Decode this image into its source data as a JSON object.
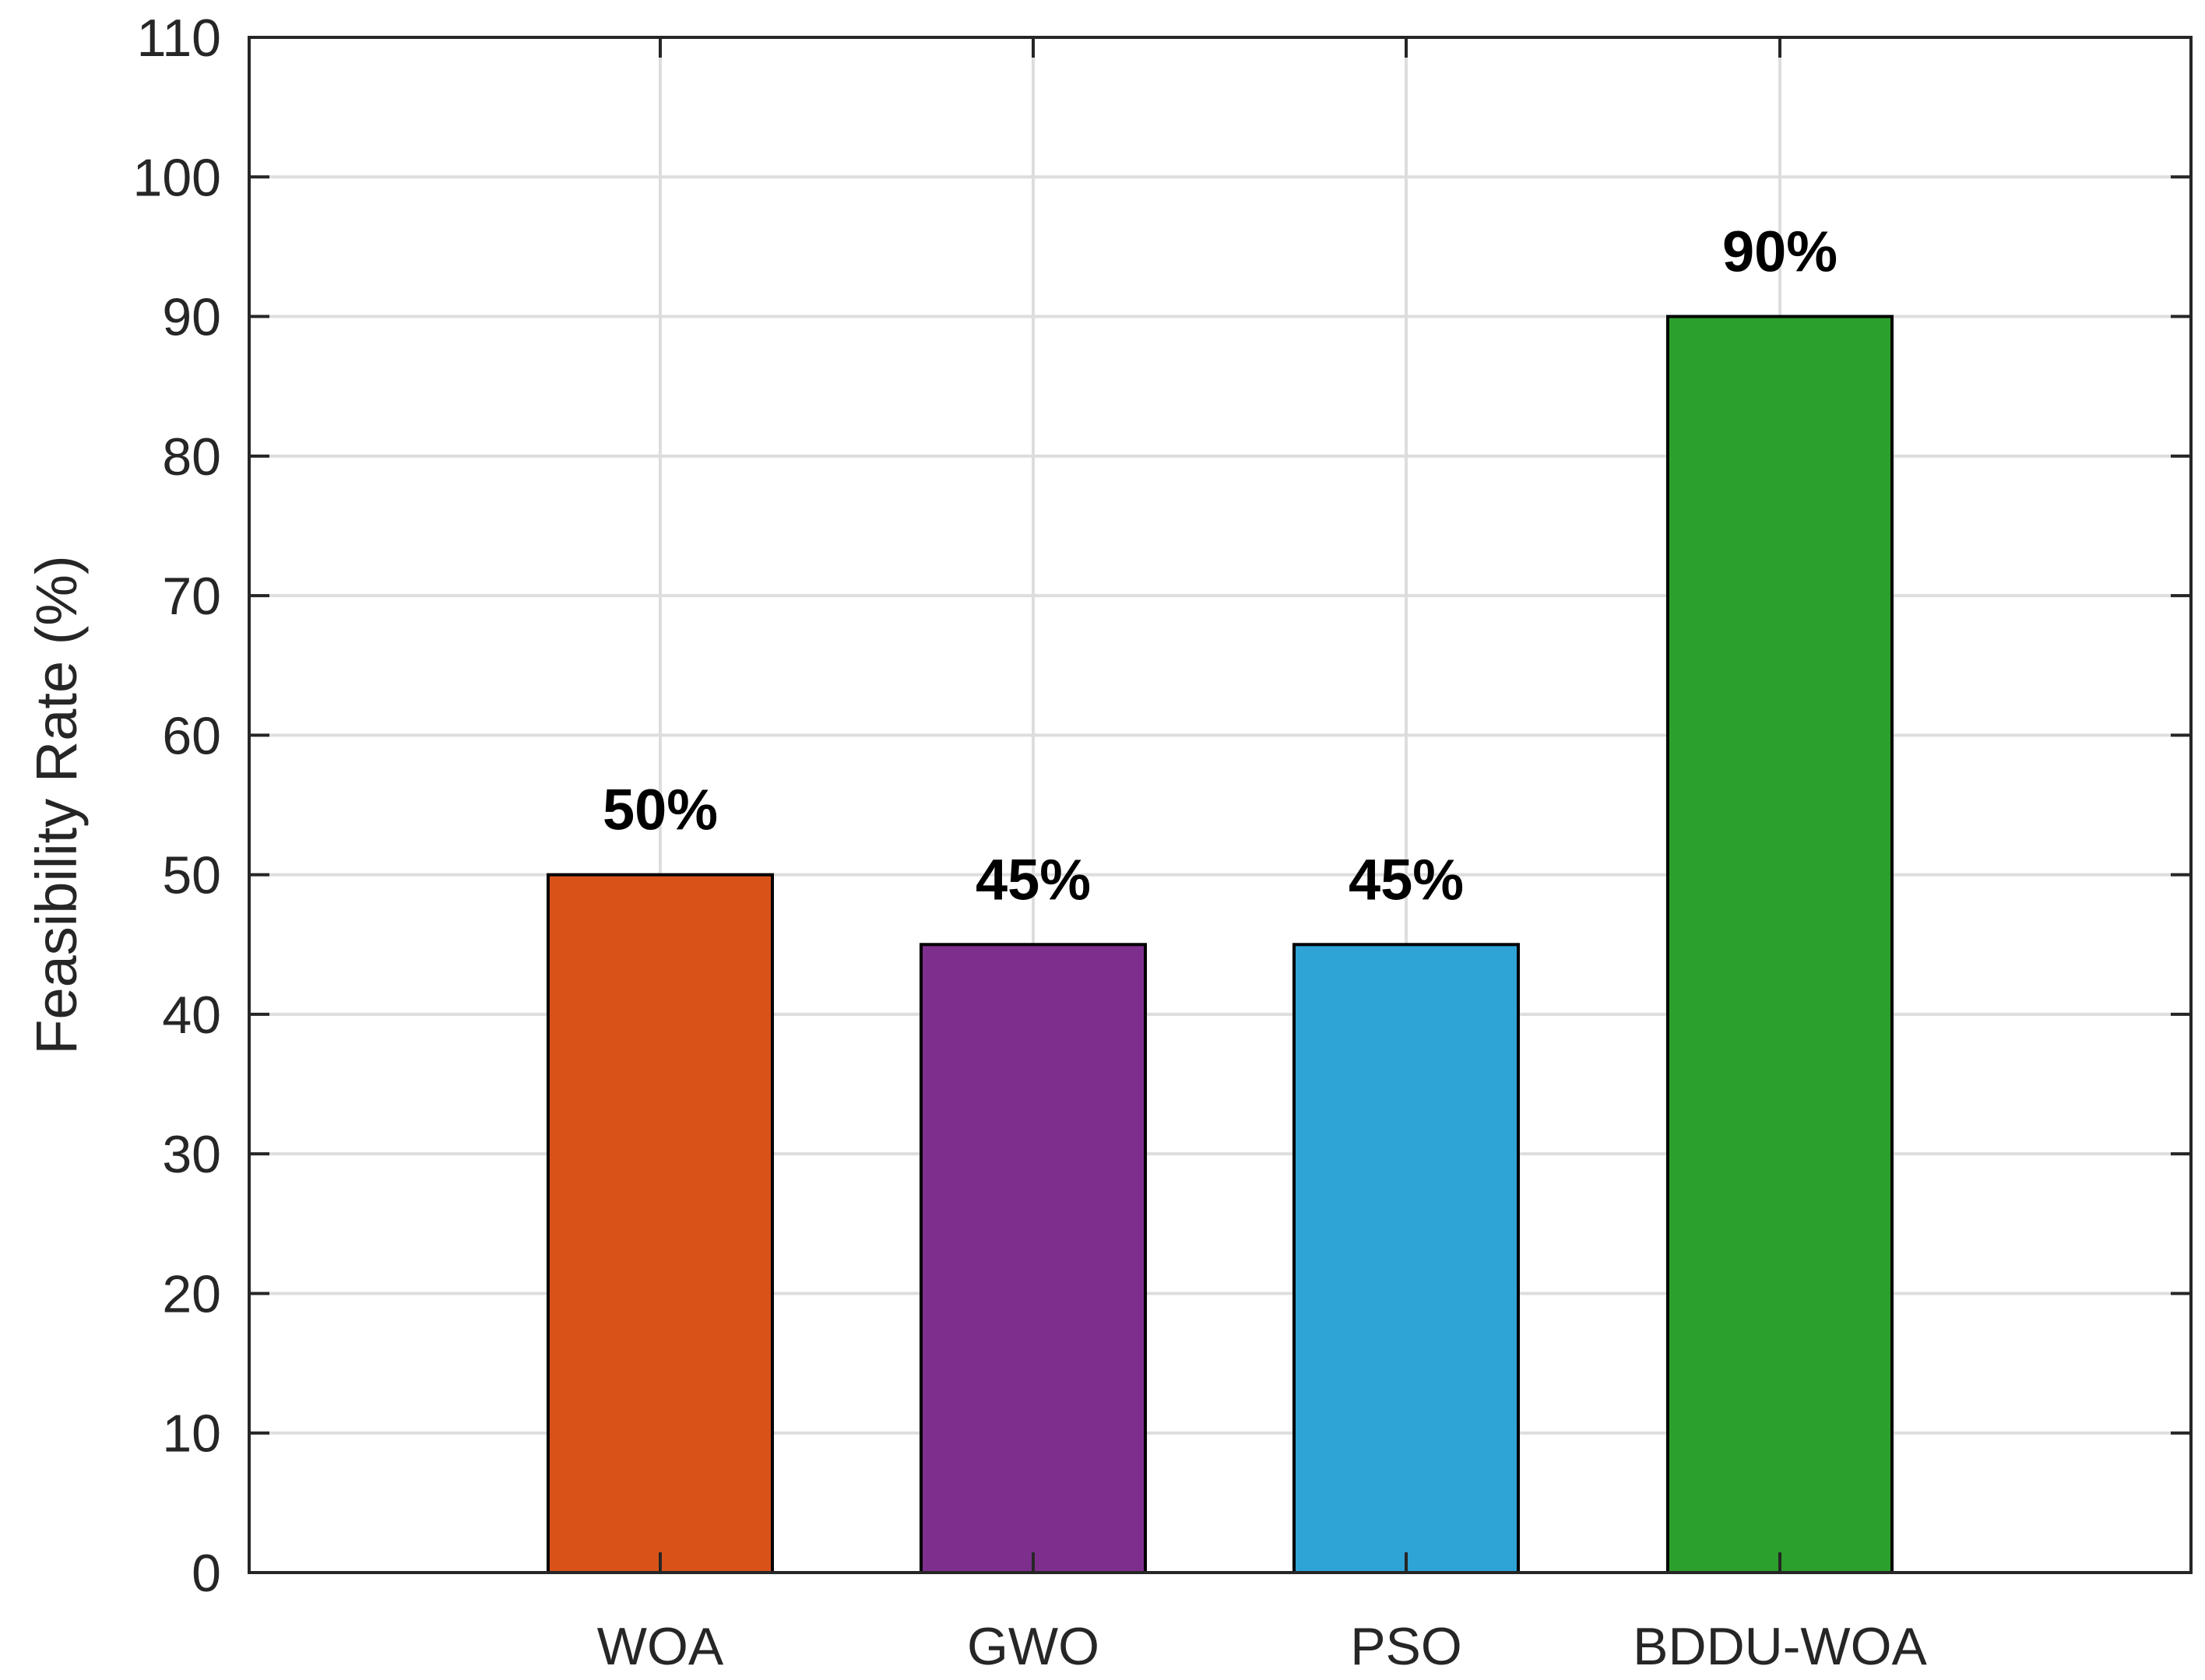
{
  "chart_data": {
    "type": "bar",
    "title": "",
    "xlabel": "",
    "ylabel": "Feasibility Rate (%)",
    "categories": [
      "WOA",
      "GWO",
      "PSO",
      "BDDU-WOA"
    ],
    "values": [
      50,
      45,
      45,
      90
    ],
    "data_labels": [
      "50%",
      "45%",
      "45%",
      "90%"
    ],
    "colors": [
      "#D95319",
      "#7E2F8E",
      "#2EA3D6",
      "#2CA02C"
    ],
    "ylim": [
      0,
      110
    ],
    "yticks": [
      "0",
      "10",
      "20",
      "30",
      "40",
      "50",
      "60",
      "70",
      "80",
      "90",
      "100",
      "110"
    ],
    "grid": true,
    "legend": "none"
  }
}
